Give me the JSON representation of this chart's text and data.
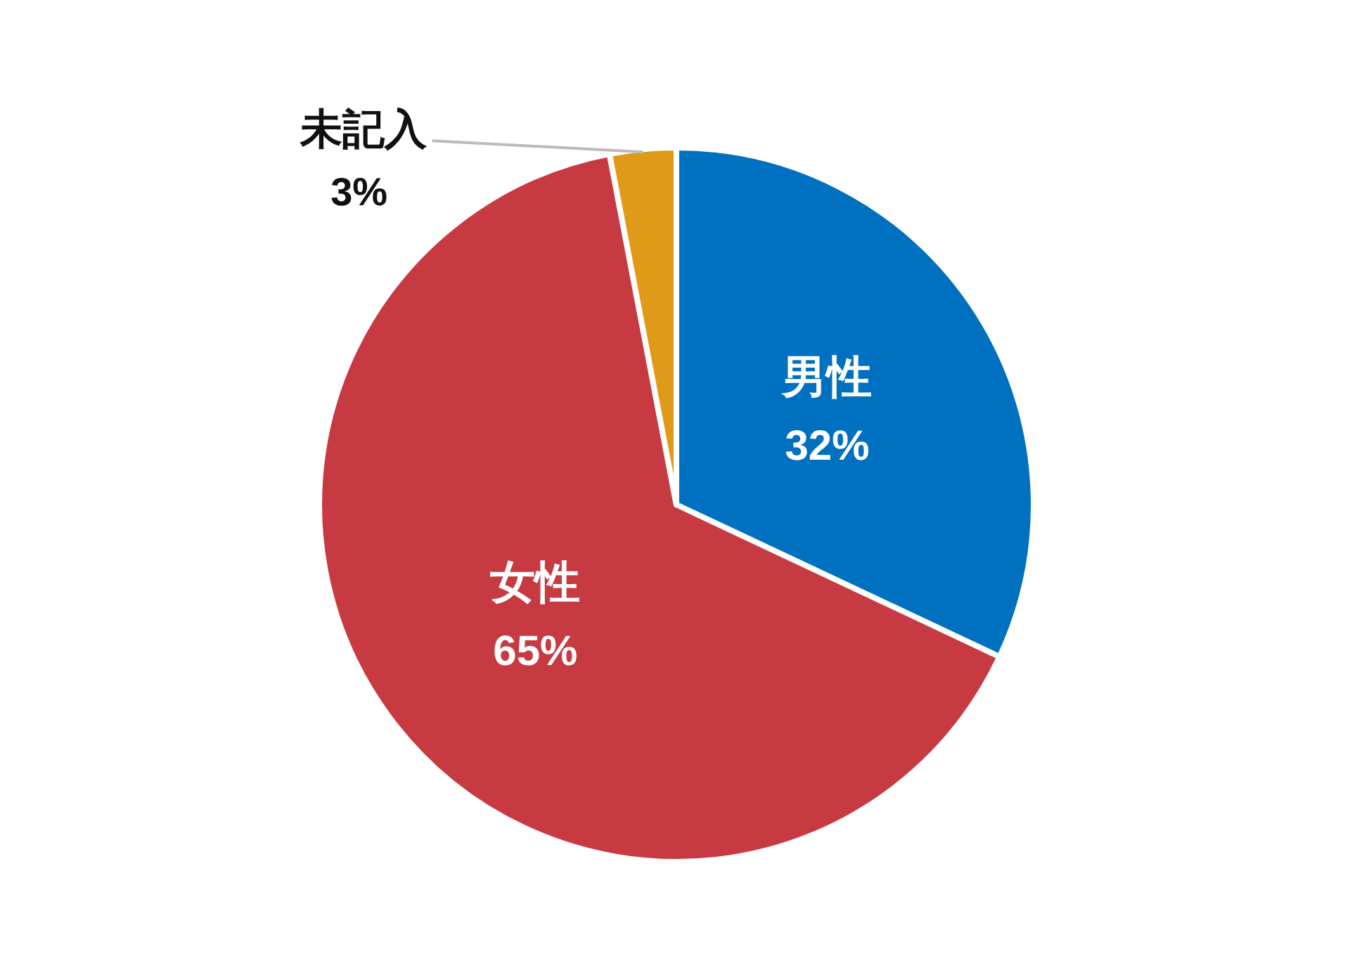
{
  "chart_data": {
    "type": "pie",
    "categories": [
      "男性",
      "女性",
      "未記入"
    ],
    "values": [
      32,
      65,
      3
    ],
    "colors": [
      "#0070c0",
      "#c83a42",
      "#e09a1a"
    ],
    "value_labels": [
      "32%",
      "65%",
      "3%"
    ]
  }
}
